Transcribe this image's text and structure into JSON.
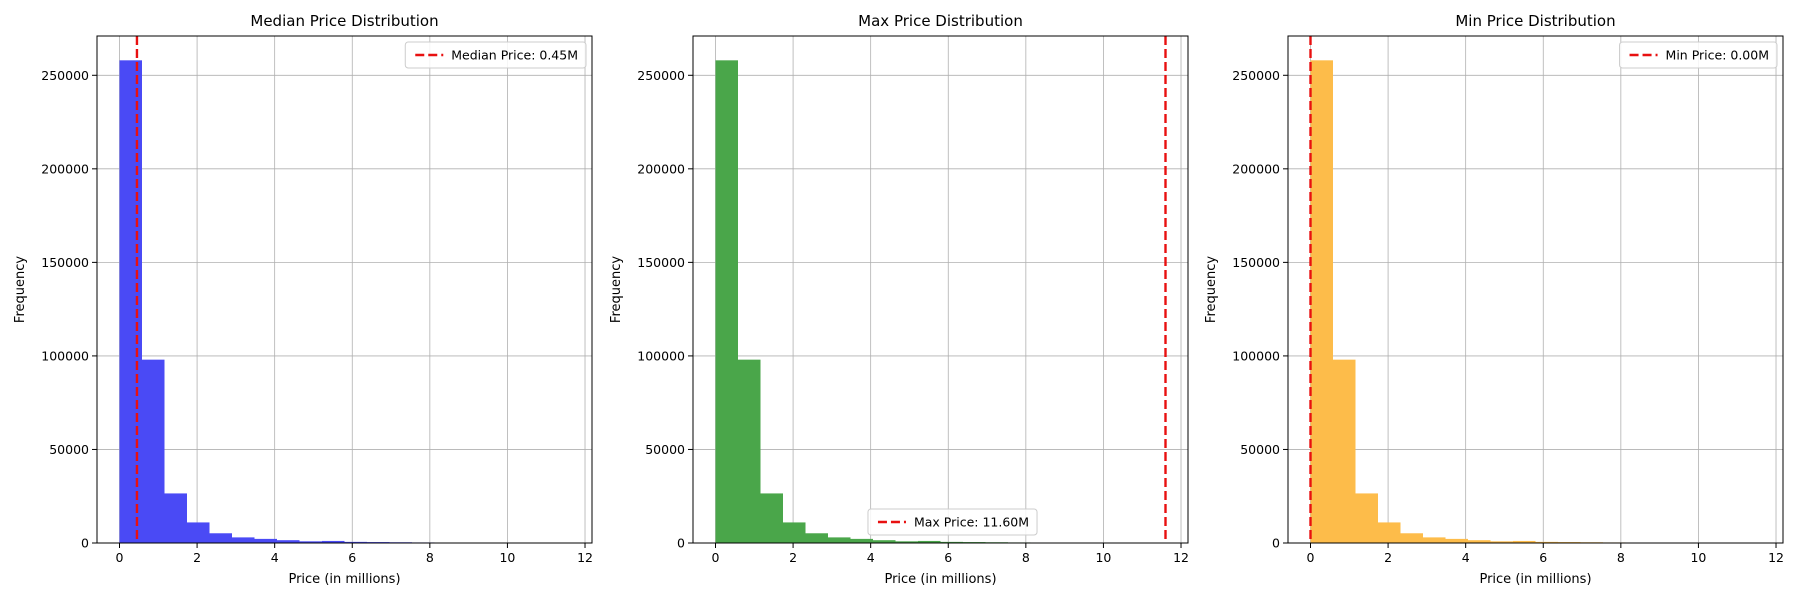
{
  "chart_data": [
    {
      "type": "bar",
      "title": "Median Price Distribution",
      "xlabel": "Price (in millions)",
      "ylabel": "Frequency",
      "xlim": [
        -0.58,
        12.18
      ],
      "ylim": [
        0,
        271000
      ],
      "xticks": [
        0,
        2,
        4,
        6,
        8,
        10,
        12
      ],
      "yticks": [
        0,
        50000,
        100000,
        150000,
        200000,
        250000
      ],
      "grid": true,
      "color": "#4a4af5",
      "bin_edges": [
        0,
        0.58,
        1.16,
        1.74,
        2.32,
        2.9,
        3.48,
        4.06,
        4.64,
        5.22,
        5.8,
        6.38,
        6.96,
        7.54,
        8.12,
        8.7,
        9.28,
        9.86,
        10.44,
        11.02,
        11.6
      ],
      "values": [
        258000,
        98000,
        26500,
        11000,
        5200,
        3000,
        2200,
        1500,
        900,
        1100,
        600,
        500,
        400,
        300,
        250,
        200,
        250,
        150,
        80,
        50
      ],
      "reference_line": {
        "x": 0.45,
        "color": "#e81010"
      },
      "legend": {
        "position": "upper right",
        "label": "Median Price: 0.45M"
      }
    },
    {
      "type": "bar",
      "title": "Max Price Distribution",
      "xlabel": "Price (in millions)",
      "ylabel": "Frequency",
      "xlim": [
        -0.58,
        12.18
      ],
      "ylim": [
        0,
        271000
      ],
      "xticks": [
        0,
        2,
        4,
        6,
        8,
        10,
        12
      ],
      "yticks": [
        0,
        50000,
        100000,
        150000,
        200000,
        250000
      ],
      "grid": true,
      "color": "#4aa64a",
      "bin_edges": [
        0,
        0.58,
        1.16,
        1.74,
        2.32,
        2.9,
        3.48,
        4.06,
        4.64,
        5.22,
        5.8,
        6.38,
        6.96,
        7.54,
        8.12,
        8.7,
        9.28,
        9.86,
        10.44,
        11.02,
        11.6
      ],
      "values": [
        258000,
        98000,
        26500,
        11000,
        5200,
        3000,
        2200,
        1500,
        900,
        1100,
        600,
        500,
        400,
        300,
        250,
        200,
        250,
        150,
        80,
        50
      ],
      "reference_line": {
        "x": 11.6,
        "color": "#e81010"
      },
      "legend": {
        "position": "lower center",
        "label": "Max Price: 11.60M"
      }
    },
    {
      "type": "bar",
      "title": "Min Price Distribution",
      "xlabel": "Price (in millions)",
      "ylabel": "Frequency",
      "xlim": [
        -0.58,
        12.18
      ],
      "ylim": [
        0,
        271000
      ],
      "xticks": [
        0,
        2,
        4,
        6,
        8,
        10,
        12
      ],
      "yticks": [
        0,
        50000,
        100000,
        150000,
        200000,
        250000
      ],
      "grid": true,
      "color": "#fdbc4a",
      "bin_edges": [
        0,
        0.58,
        1.16,
        1.74,
        2.32,
        2.9,
        3.48,
        4.06,
        4.64,
        5.22,
        5.8,
        6.38,
        6.96,
        7.54,
        8.12,
        8.7,
        9.28,
        9.86,
        10.44,
        11.02,
        11.6
      ],
      "values": [
        258000,
        98000,
        26500,
        11000,
        5200,
        3000,
        2200,
        1500,
        900,
        1100,
        600,
        500,
        400,
        300,
        250,
        200,
        250,
        150,
        80,
        50
      ],
      "reference_line": {
        "x": 0.0,
        "color": "#e81010"
      },
      "legend": {
        "position": "upper right",
        "label": "Min Price: 0.00M"
      }
    }
  ]
}
